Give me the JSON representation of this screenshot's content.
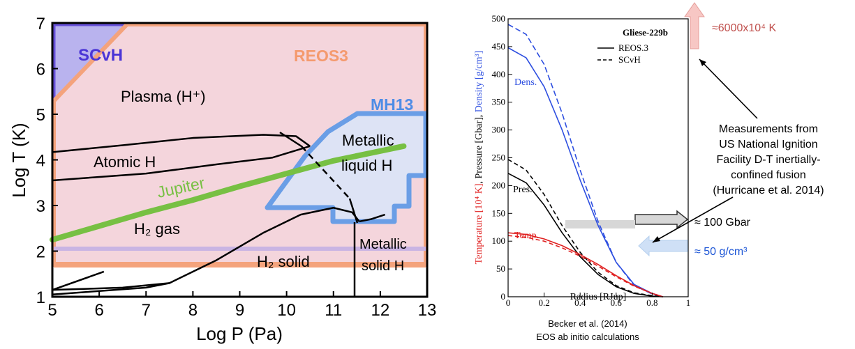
{
  "chart_data": [
    {
      "type": "line",
      "title": "",
      "xlabel": "Log P (Pa)",
      "ylabel": "Log T (K)",
      "xlim": [
        5,
        13
      ],
      "ylim": [
        1,
        7
      ],
      "xticks": [
        "5",
        "6",
        "7",
        "8",
        "9",
        "10",
        "11",
        "12",
        "13"
      ],
      "yticks": [
        "1",
        "2",
        "3",
        "4",
        "5",
        "6",
        "7"
      ],
      "region_labels": {
        "plasma": "Plasma (H⁺)",
        "atomic": "Atomic H",
        "h2gas": "H₂ gas",
        "h2solid": "H₂ solid",
        "metallic_liquid_1": "Metallic",
        "metallic_liquid_2": "liquid H",
        "metallic_solid_1": "Metallic",
        "metallic_solid_2": "solid H",
        "jupiter": "Jupiter",
        "scvh": "SCvH",
        "reos3": "REOS3",
        "mh13": "MH13"
      },
      "colors": {
        "region_fill": "#f4d5dc",
        "reos": "#f4a37c",
        "scvh": "#6650d8",
        "scvh_fill": "#b9b3ee",
        "mh13": "#6a9ee6",
        "mh13_fill": "#dde3f5",
        "jupiter": "#77c043",
        "phase": "#000000"
      },
      "series": [
        {
          "x": [
            5,
            6,
            7,
            8,
            9,
            10,
            11,
            12.5
          ],
          "y": [
            2.25,
            2.55,
            2.85,
            3.12,
            3.42,
            3.7,
            3.98,
            4.3
          ]
        }
      ],
      "phase_boundaries": [
        {
          "x": [
            5,
            6.5,
            8,
            9.5,
            10.2,
            10.5
          ],
          "y": [
            4.17,
            4.32,
            4.48,
            4.55,
            4.52,
            4.3
          ]
        },
        {
          "x": [
            5,
            7,
            8.5,
            9.7,
            10.5
          ],
          "y": [
            3.55,
            3.7,
            3.9,
            4.05,
            4.3
          ]
        },
        {
          "x": [
            5,
            6.5,
            7.5,
            8.5,
            9.5,
            10.3,
            11,
            11.4,
            11.55
          ],
          "y": [
            1.15,
            1.2,
            1.3,
            1.8,
            2.4,
            2.8,
            2.95,
            2.85,
            2.65
          ]
        },
        {
          "x": [
            11.55,
            11.8,
            12.1
          ],
          "y": [
            2.65,
            2.7,
            2.8
          ]
        },
        {
          "x": [
            5,
            6.1
          ],
          "y": [
            1.15,
            1.55
          ]
        },
        {
          "x": [
            5,
            7,
            7.5
          ],
          "y": [
            1.05,
            1.2,
            1.3
          ]
        }
      ]
    },
    {
      "type": "line",
      "title": "Gliese-229b",
      "xlabel": "Radius [RJup]",
      "ylabel_parts": [
        "Temperature [10⁴ K]",
        ", ",
        "Pressure [Gbar]",
        ", ",
        "Density [g/cm³]"
      ],
      "xlim": [
        0,
        1
      ],
      "ylim": [
        0,
        500
      ],
      "xticks": [
        "0",
        "0.2",
        "0.4",
        "0.6",
        "0.8",
        "1"
      ],
      "yticks": [
        "0",
        "50",
        "100",
        "150",
        "200",
        "250",
        "300",
        "350",
        "400",
        "450",
        "500"
      ],
      "legend": [
        "REOS.3",
        "SCvH"
      ],
      "curve_labels": {
        "dens": "Dens.",
        "pres": "Pres.",
        "temp": "Temp."
      },
      "series": [
        {
          "x": [
            0,
            0.1,
            0.2,
            0.3,
            0.4,
            0.5,
            0.6,
            0.7,
            0.8,
            0.86
          ],
          "y": [
            448,
            430,
            378,
            300,
            210,
            128,
            62,
            22,
            6,
            0
          ]
        },
        {
          "x": [
            0,
            0.1,
            0.2,
            0.3,
            0.4,
            0.5,
            0.6,
            0.7,
            0.8,
            0.86
          ],
          "y": [
            490,
            472,
            418,
            330,
            228,
            135,
            62,
            20,
            5,
            0
          ]
        },
        {
          "x": [
            0,
            0.1,
            0.2,
            0.3,
            0.4,
            0.5,
            0.6,
            0.7,
            0.8,
            0.86
          ],
          "y": [
            222,
            205,
            165,
            115,
            72,
            40,
            18,
            6,
            1,
            0
          ]
        },
        {
          "x": [
            0,
            0.1,
            0.2,
            0.3,
            0.4,
            0.5,
            0.6,
            0.7,
            0.8,
            0.86
          ],
          "y": [
            247,
            228,
            184,
            128,
            80,
            44,
            20,
            7,
            2,
            0
          ]
        },
        {
          "x": [
            0,
            0.1,
            0.2,
            0.3,
            0.4,
            0.5,
            0.6,
            0.7,
            0.8,
            0.86
          ],
          "y": [
            115,
            112,
            104,
            92,
            76,
            58,
            38,
            20,
            6,
            0
          ]
        },
        {
          "x": [
            0,
            0.1,
            0.2,
            0.3,
            0.4,
            0.5,
            0.6,
            0.7,
            0.8,
            0.86
          ],
          "y": [
            110,
            107,
            100,
            88,
            73,
            55,
            36,
            19,
            6,
            0
          ]
        }
      ]
    }
  ],
  "annotations": {
    "top_value": "≈6000x10⁴ K",
    "measurements": [
      "Measurements from",
      "US National Ignition",
      "Facility D-T inertially-",
      "confined fusion",
      "(Hurricane et al. 2014)"
    ],
    "pressure_value": "≈ 100 Gbar",
    "density_value": "≈ 50 g/cm³",
    "caption": [
      "Becker et al. (2014)",
      "EOS ab initio calculations"
    ]
  }
}
